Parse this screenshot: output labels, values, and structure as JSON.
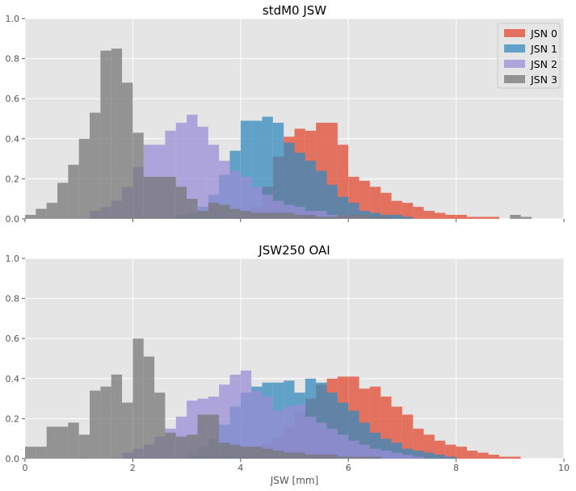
{
  "chart_data": [
    {
      "type": "histogram",
      "title": "stdM0 JSW",
      "xlabel": "",
      "ylabel": "",
      "xlim": [
        0,
        10
      ],
      "ylim": [
        0,
        1
      ],
      "xticks": [
        0,
        2,
        4,
        6,
        8,
        10
      ],
      "yticks": [
        0,
        0.2,
        0.4,
        0.6,
        0.8,
        1.0
      ],
      "xtick_labels": [
        "0",
        "2",
        "4",
        "6",
        "8",
        "10"
      ],
      "ytick_labels": [
        "0.0",
        "0.2",
        "0.4",
        "0.6",
        "0.8",
        "1.0"
      ],
      "show_xtick_labels": false,
      "grid": true,
      "legend_position": "top-right",
      "alpha": 0.75,
      "series": [
        {
          "name": "JSN 0",
          "color": "#E24A33",
          "bin_start": 3.8,
          "bin_width": 0.2,
          "values": [
            0.01,
            0.03,
            0.06,
            0.16,
            0.31,
            0.41,
            0.45,
            0.44,
            0.48,
            0.48,
            0.37,
            0.21,
            0.19,
            0.16,
            0.13,
            0.09,
            0.08,
            0.06,
            0.04,
            0.03,
            0.02,
            0.02,
            0.01,
            0.01,
            0.01,
            0.0,
            0.0,
            0.0,
            0.0
          ]
        },
        {
          "name": "JSN 1",
          "color": "#348ABD",
          "bin_start": 2.8,
          "bin_width": 0.2,
          "values": [
            0.02,
            0.03,
            0.06,
            0.12,
            0.22,
            0.34,
            0.49,
            0.49,
            0.51,
            0.48,
            0.38,
            0.33,
            0.29,
            0.24,
            0.17,
            0.11,
            0.08,
            0.04,
            0.03,
            0.02,
            0.02,
            0.01
          ]
        },
        {
          "name": "JSN 2",
          "color": "#988ED5",
          "bin_start": 1.2,
          "bin_width": 0.2,
          "values": [
            0.04,
            0.06,
            0.09,
            0.16,
            0.26,
            0.37,
            0.37,
            0.44,
            0.48,
            0.52,
            0.46,
            0.37,
            0.29,
            0.24,
            0.21,
            0.16,
            0.12,
            0.09,
            0.07,
            0.06,
            0.04,
            0.04,
            0.02,
            0.02,
            0.01,
            0.01
          ]
        },
        {
          "name": "JSN 3",
          "color": "#777777",
          "bin_start": 0.0,
          "bin_width": 0.2,
          "values": [
            0.02,
            0.05,
            0.08,
            0.18,
            0.27,
            0.4,
            0.53,
            0.84,
            0.85,
            0.68,
            0.43,
            0.21,
            0.21,
            0.21,
            0.16,
            0.1,
            0.04,
            0.08,
            0.07,
            0.05,
            0.04,
            0.03,
            0.03,
            0.03,
            0.03,
            0.02,
            0.02,
            0.01,
            0.01,
            0.02,
            0.02,
            0.02,
            0.01,
            0.01,
            0.0,
            0.0,
            0.0,
            0.0,
            0.0,
            0.0,
            0.0,
            0.0,
            0.0,
            0.0,
            0.0,
            0.02,
            0.01
          ]
        }
      ]
    },
    {
      "type": "histogram",
      "title": "JSW250 OAI",
      "xlabel": "JSW [mm]",
      "ylabel": "",
      "xlim": [
        0,
        10
      ],
      "ylim": [
        0,
        1
      ],
      "xticks": [
        0,
        2,
        4,
        6,
        8,
        10
      ],
      "yticks": [
        0,
        0.2,
        0.4,
        0.6,
        0.8,
        1.0
      ],
      "xtick_labels": [
        "0",
        "2",
        "4",
        "6",
        "8",
        "10"
      ],
      "ytick_labels": [
        "0.0",
        "0.2",
        "0.4",
        "0.6",
        "0.8",
        "1.0"
      ],
      "show_xtick_labels": true,
      "grid": true,
      "alpha": 0.75,
      "series": [
        {
          "name": "JSN 0",
          "color": "#E24A33",
          "bin_start": 4.0,
          "bin_width": 0.2,
          "values": [
            0.02,
            0.04,
            0.07,
            0.11,
            0.16,
            0.23,
            0.3,
            0.37,
            0.4,
            0.41,
            0.41,
            0.35,
            0.36,
            0.31,
            0.26,
            0.22,
            0.15,
            0.12,
            0.09,
            0.07,
            0.06,
            0.04,
            0.03,
            0.02,
            0.01,
            0.01,
            0.0,
            0.0,
            0.0,
            0.0
          ]
        },
        {
          "name": "JSN 1",
          "color": "#348ABD",
          "bin_start": 3.0,
          "bin_width": 0.2,
          "values": [
            0.03,
            0.06,
            0.1,
            0.17,
            0.26,
            0.33,
            0.36,
            0.38,
            0.38,
            0.39,
            0.33,
            0.4,
            0.38,
            0.33,
            0.28,
            0.24,
            0.18,
            0.13,
            0.1,
            0.08,
            0.05,
            0.04,
            0.03,
            0.02,
            0.01
          ]
        },
        {
          "name": "JSN 2",
          "color": "#988ED5",
          "bin_start": 1.8,
          "bin_width": 0.2,
          "values": [
            0.03,
            0.05,
            0.07,
            0.11,
            0.15,
            0.21,
            0.29,
            0.3,
            0.31,
            0.37,
            0.42,
            0.44,
            0.34,
            0.31,
            0.24,
            0.26,
            0.27,
            0.21,
            0.18,
            0.15,
            0.12,
            0.09,
            0.07,
            0.05,
            0.04,
            0.03,
            0.02,
            0.01
          ]
        },
        {
          "name": "JSN 3",
          "color": "#777777",
          "bin_start": 0.0,
          "bin_width": 0.2,
          "values": [
            0.06,
            0.06,
            0.16,
            0.16,
            0.18,
            0.12,
            0.34,
            0.36,
            0.42,
            0.28,
            0.6,
            0.51,
            0.33,
            0.13,
            0.11,
            0.12,
            0.22,
            0.22,
            0.08,
            0.07,
            0.06,
            0.06,
            0.05,
            0.04,
            0.03,
            0.03,
            0.02,
            0.02,
            0.02,
            0.01,
            0.01,
            0.01,
            0.01
          ]
        }
      ]
    }
  ]
}
